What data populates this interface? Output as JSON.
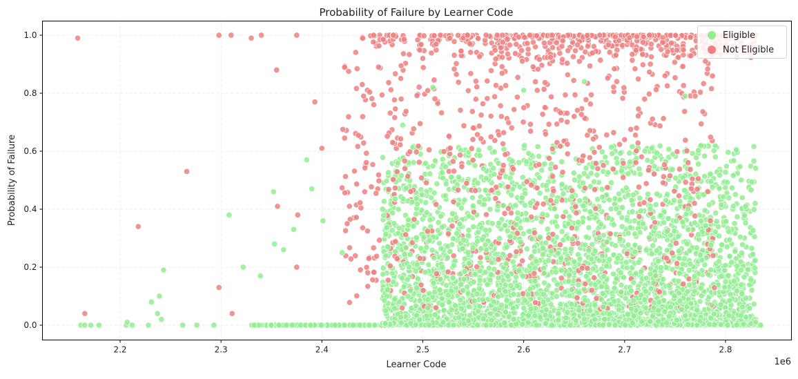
{
  "chart_data": {
    "type": "scatter",
    "title": "Probability of Failure by Learner Code",
    "xlabel": "Learner Code",
    "ylabel": "Probability of Failure",
    "x_offset_label": "1e6",
    "xlim": [
      2.125,
      2.845
    ],
    "ylim": [
      -0.05,
      1.05
    ],
    "x_ticks": [
      2.2,
      2.3,
      2.4,
      2.5,
      2.6,
      2.7,
      2.8
    ],
    "x_tick_labels": [
      "2.2",
      "2.3",
      "2.4",
      "2.5",
      "2.6",
      "2.7",
      "2.8"
    ],
    "y_ticks": [
      0.0,
      0.2,
      0.4,
      0.6,
      0.8,
      1.0
    ],
    "y_tick_labels": [
      "0.0",
      "0.2",
      "0.4",
      "0.6",
      "0.8",
      "1.0"
    ],
    "grid": true,
    "legend_position": "upper right",
    "series": [
      {
        "name": "Eligible",
        "color": "#90ee90",
        "description": "Dense cluster x 2.46-2.83 (1e6), y mostly 0.0-0.6; heavy band at y=0.0; sparse points x 2.16-2.45 near y=0",
        "sample_points": [
          [
            2.161,
            0.0
          ],
          [
            2.165,
            0.0
          ],
          [
            2.171,
            0.0
          ],
          [
            2.179,
            0.0
          ],
          [
            2.206,
            0.0
          ],
          [
            2.207,
            0.01
          ],
          [
            2.212,
            0.0
          ],
          [
            2.228,
            0.0
          ],
          [
            2.231,
            0.08
          ],
          [
            2.237,
            0.04
          ],
          [
            2.239,
            0.1
          ],
          [
            2.241,
            0.02
          ],
          [
            2.243,
            0.19
          ],
          [
            2.262,
            0.0
          ],
          [
            2.276,
            0.0
          ],
          [
            2.293,
            0.0
          ],
          [
            2.308,
            0.38
          ],
          [
            2.322,
            0.2
          ],
          [
            2.339,
            0.17
          ],
          [
            2.352,
            0.46
          ],
          [
            2.353,
            0.28
          ],
          [
            2.362,
            0.26
          ],
          [
            2.372,
            0.33
          ],
          [
            2.385,
            0.57
          ],
          [
            2.39,
            0.47
          ],
          [
            2.401,
            0.36
          ],
          [
            2.42,
            0.25
          ],
          [
            2.48,
            0.69
          ],
          [
            2.51,
            0.82
          ],
          [
            2.56,
            0.54
          ],
          [
            2.6,
            0.81
          ],
          [
            2.66,
            0.84
          ],
          [
            2.72,
            0.6
          ],
          [
            2.76,
            0.79
          ],
          [
            2.79,
            0.58
          ],
          [
            2.8,
            0.15
          ],
          [
            2.83,
            0.01
          ]
        ],
        "approx_count": 4200
      },
      {
        "name": "Not Eligible",
        "color": "#f08080",
        "description": "Dense band at y=1.0 for x 2.44-2.83; scattered points y 0.1-1.0 mainly x 2.4-2.8",
        "sample_points": [
          [
            2.158,
            0.99
          ],
          [
            2.165,
            0.04
          ],
          [
            2.218,
            0.34
          ],
          [
            2.266,
            0.53
          ],
          [
            2.298,
            1.0
          ],
          [
            2.298,
            0.13
          ],
          [
            2.31,
            1.0
          ],
          [
            2.311,
            0.04
          ],
          [
            2.33,
            0.99
          ],
          [
            2.34,
            1.0
          ],
          [
            2.355,
            0.88
          ],
          [
            2.356,
            0.41
          ],
          [
            2.375,
            1.0
          ],
          [
            2.375,
            0.2
          ],
          [
            2.376,
            0.38
          ],
          [
            2.393,
            0.77
          ],
          [
            2.4,
            0.61
          ],
          [
            2.425,
            0.35
          ],
          [
            2.44,
            0.83
          ],
          [
            2.47,
            0.63
          ],
          [
            2.5,
            0.92
          ],
          [
            2.55,
            0.68
          ],
          [
            2.6,
            0.75
          ],
          [
            2.65,
            0.72
          ],
          [
            2.7,
            0.64
          ],
          [
            2.74,
            0.86
          ],
          [
            2.77,
            0.79
          ],
          [
            2.78,
            0.91
          ],
          [
            2.785,
            0.36
          ],
          [
            2.8,
            0.99
          ]
        ],
        "approx_count": 1500
      }
    ]
  },
  "legend": {
    "items": [
      {
        "label": "Eligible",
        "color": "#90ee90"
      },
      {
        "label": "Not Eligible",
        "color": "#f08080"
      }
    ]
  }
}
